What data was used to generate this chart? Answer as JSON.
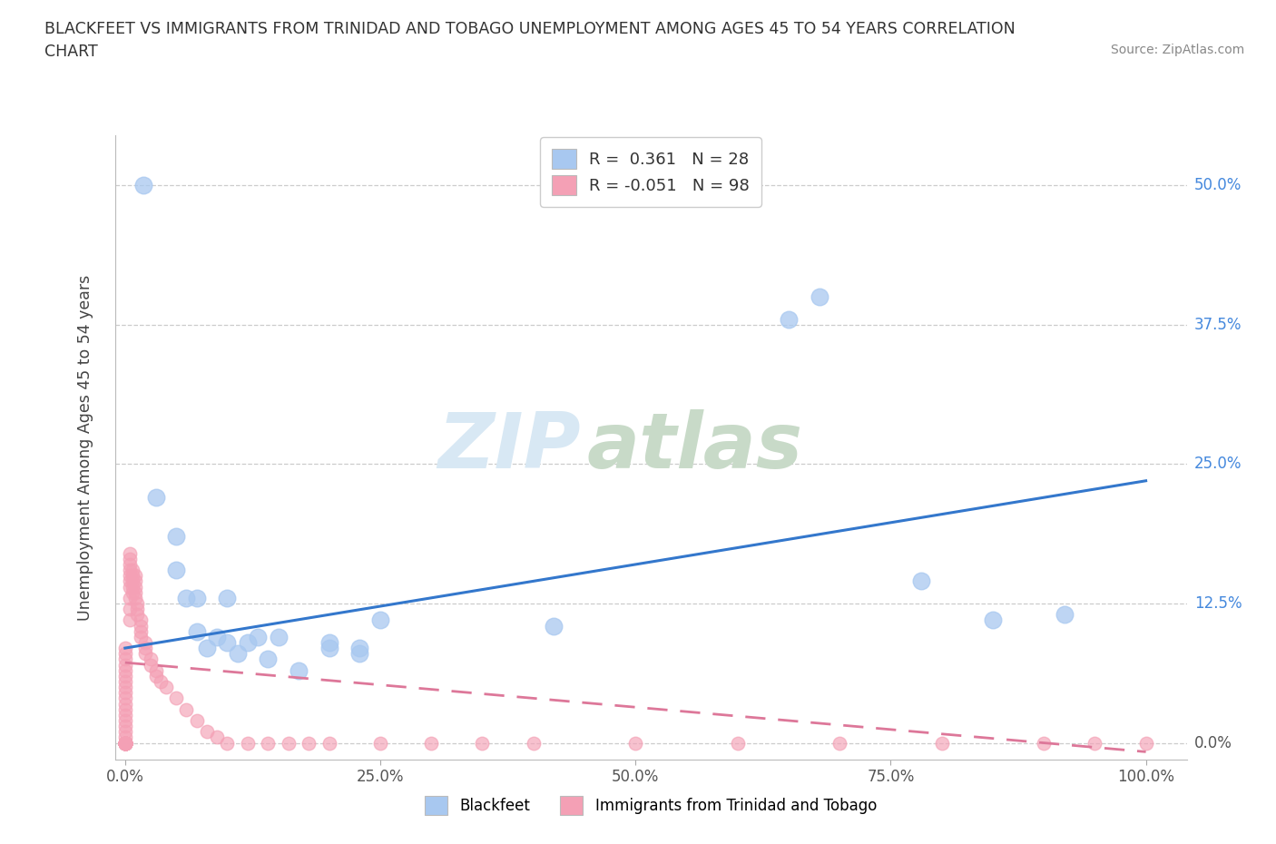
{
  "title_line1": "BLACKFEET VS IMMIGRANTS FROM TRINIDAD AND TOBAGO UNEMPLOYMENT AMONG AGES 45 TO 54 YEARS CORRELATION",
  "title_line2": "CHART",
  "source": "Source: ZipAtlas.com",
  "ylabel": "Unemployment Among Ages 45 to 54 years",
  "xticklabels": [
    "0.0%",
    "25.0%",
    "50.0%",
    "75.0%",
    "100.0%"
  ],
  "xtick_values": [
    0.0,
    0.25,
    0.5,
    0.75,
    1.0
  ],
  "yticklabels_right": [
    "0.0%",
    "12.5%",
    "25.0%",
    "37.5%",
    "50.0%"
  ],
  "ytick_values": [
    0.0,
    0.125,
    0.25,
    0.375,
    0.5
  ],
  "xlim": [
    -0.01,
    1.04
  ],
  "ylim": [
    -0.015,
    0.545
  ],
  "r_blackfeet": 0.361,
  "n_blackfeet": 28,
  "r_trinidadtobago": -0.051,
  "n_trinidadtobago": 98,
  "blackfeet_color": "#a8c8f0",
  "trinidadtobago_color": "#f4a0b5",
  "trendline_blackfeet_color": "#3377cc",
  "trendline_trinidadtobago_color": "#dd7799",
  "watermark_zip": "ZIP",
  "watermark_atlas": "atlas",
  "legend_blackfeet": "Blackfeet",
  "legend_trinidadtobago": "Immigrants from Trinidad and Tobago",
  "blackfeet_x": [
    0.018,
    0.03,
    0.05,
    0.05,
    0.06,
    0.07,
    0.07,
    0.08,
    0.09,
    0.1,
    0.1,
    0.11,
    0.12,
    0.13,
    0.14,
    0.15,
    0.17,
    0.2,
    0.2,
    0.23,
    0.23,
    0.25,
    0.42,
    0.65,
    0.68,
    0.78,
    0.85,
    0.92
  ],
  "blackfeet_y": [
    0.5,
    0.22,
    0.155,
    0.185,
    0.13,
    0.13,
    0.1,
    0.085,
    0.095,
    0.13,
    0.09,
    0.08,
    0.09,
    0.095,
    0.075,
    0.095,
    0.065,
    0.085,
    0.09,
    0.08,
    0.085,
    0.11,
    0.105,
    0.38,
    0.4,
    0.145,
    0.11,
    0.115
  ],
  "trinidadtobago_x": [
    0.0,
    0.0,
    0.0,
    0.0,
    0.0,
    0.0,
    0.0,
    0.0,
    0.0,
    0.0,
    0.0,
    0.0,
    0.0,
    0.0,
    0.0,
    0.0,
    0.0,
    0.0,
    0.0,
    0.0,
    0.0,
    0.0,
    0.0,
    0.0,
    0.0,
    0.0,
    0.0,
    0.0,
    0.0,
    0.0,
    0.0,
    0.0,
    0.0,
    0.0,
    0.0,
    0.0,
    0.0,
    0.0,
    0.0,
    0.0,
    0.005,
    0.005,
    0.005,
    0.005,
    0.005,
    0.005,
    0.005,
    0.005,
    0.005,
    0.005,
    0.007,
    0.007,
    0.007,
    0.007,
    0.007,
    0.01,
    0.01,
    0.01,
    0.01,
    0.01,
    0.012,
    0.012,
    0.012,
    0.015,
    0.015,
    0.015,
    0.015,
    0.02,
    0.02,
    0.02,
    0.025,
    0.025,
    0.03,
    0.03,
    0.035,
    0.04,
    0.05,
    0.06,
    0.07,
    0.08,
    0.09,
    0.1,
    0.12,
    0.14,
    0.16,
    0.18,
    0.2,
    0.25,
    0.3,
    0.35,
    0.4,
    0.5,
    0.6,
    0.7,
    0.8,
    0.9,
    0.95,
    1.0
  ],
  "trinidadtobago_y": [
    0.085,
    0.08,
    0.075,
    0.07,
    0.065,
    0.06,
    0.055,
    0.05,
    0.045,
    0.04,
    0.035,
    0.03,
    0.025,
    0.02,
    0.015,
    0.01,
    0.005,
    0.0,
    0.0,
    0.0,
    0.0,
    0.0,
    0.0,
    0.0,
    0.0,
    0.0,
    0.0,
    0.0,
    0.0,
    0.0,
    0.0,
    0.0,
    0.0,
    0.0,
    0.0,
    0.0,
    0.0,
    0.0,
    0.0,
    0.0,
    0.17,
    0.165,
    0.16,
    0.155,
    0.15,
    0.145,
    0.14,
    0.13,
    0.12,
    0.11,
    0.155,
    0.15,
    0.145,
    0.14,
    0.135,
    0.15,
    0.145,
    0.14,
    0.135,
    0.13,
    0.125,
    0.12,
    0.115,
    0.11,
    0.105,
    0.1,
    0.095,
    0.09,
    0.085,
    0.08,
    0.075,
    0.07,
    0.065,
    0.06,
    0.055,
    0.05,
    0.04,
    0.03,
    0.02,
    0.01,
    0.005,
    0.0,
    0.0,
    0.0,
    0.0,
    0.0,
    0.0,
    0.0,
    0.0,
    0.0,
    0.0,
    0.0,
    0.0,
    0.0,
    0.0,
    0.0,
    0.0,
    0.0
  ]
}
